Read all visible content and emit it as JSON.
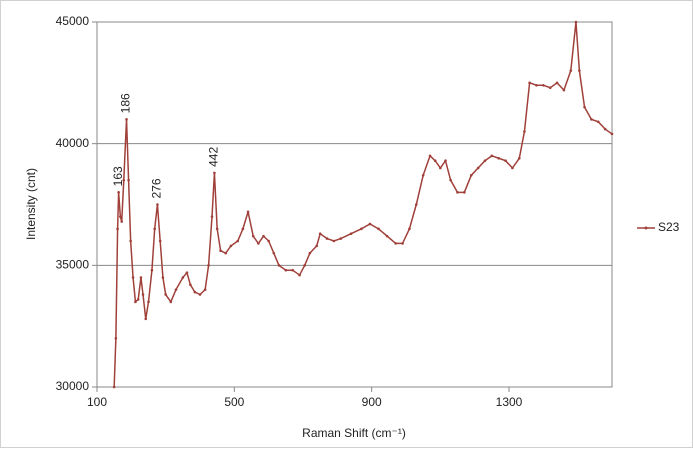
{
  "chart_data": {
    "type": "line",
    "x_label": "Raman Shift (cm⁻¹)",
    "y_label": "Intensity (cnt)",
    "x": [
      150,
      155,
      160,
      163,
      168,
      172,
      178,
      186,
      192,
      198,
      205,
      212,
      220,
      228,
      234,
      242,
      250,
      260,
      268,
      276,
      284,
      292,
      300,
      315,
      330,
      350,
      362,
      372,
      385,
      400,
      415,
      425,
      435,
      442,
      450,
      460,
      475,
      490,
      510,
      525,
      540,
      555,
      570,
      585,
      600,
      615,
      630,
      650,
      670,
      690,
      705,
      720,
      740,
      750,
      770,
      790,
      810,
      840,
      870,
      895,
      920,
      945,
      970,
      990,
      1010,
      1030,
      1050,
      1070,
      1085,
      1100,
      1115,
      1130,
      1150,
      1170,
      1190,
      1210,
      1230,
      1250,
      1270,
      1290,
      1310,
      1330,
      1345,
      1360,
      1380,
      1400,
      1420,
      1440,
      1460,
      1480,
      1495,
      1505,
      1520,
      1540,
      1560,
      1580,
      1600
    ],
    "series": [
      {
        "name": "S23",
        "color": "#a0403a",
        "values": [
          30000,
          32000,
          36500,
          38000,
          37000,
          36800,
          38500,
          41000,
          38500,
          36000,
          34500,
          33500,
          33600,
          34500,
          33800,
          32800,
          33500,
          34800,
          36500,
          37500,
          36000,
          34500,
          33800,
          33500,
          34000,
          34500,
          34700,
          34200,
          33900,
          33800,
          34000,
          35000,
          37000,
          38800,
          36500,
          35600,
          35500,
          35800,
          36000,
          36500,
          37200,
          36200,
          35900,
          36200,
          36000,
          35500,
          35000,
          34800,
          34800,
          34600,
          35000,
          35500,
          35800,
          36300,
          36100,
          36000,
          36100,
          36300,
          36500,
          36700,
          36500,
          36200,
          35900,
          35900,
          36500,
          37500,
          38700,
          39500,
          39300,
          39000,
          39300,
          38500,
          38000,
          38000,
          38700,
          39000,
          39300,
          39500,
          39400,
          39300,
          39000,
          39400,
          40500,
          42500,
          42400,
          42400,
          42300,
          42500,
          42200,
          43000,
          45000,
          43000,
          41500,
          41000,
          40900,
          40600,
          40400
        ]
      }
    ],
    "annotations": [
      {
        "text": "163",
        "x": 163,
        "y": 38000
      },
      {
        "text": "186",
        "x": 186,
        "y": 41000
      },
      {
        "text": "276",
        "x": 276,
        "y": 37500
      },
      {
        "text": "442",
        "x": 442,
        "y": 38800
      }
    ],
    "xlim": [
      100,
      1600
    ],
    "ylim": [
      30000,
      45000
    ],
    "xticks": [
      100,
      500,
      900,
      1300
    ],
    "yticks": [
      30000,
      35000,
      40000,
      45000
    ],
    "grid": true
  }
}
